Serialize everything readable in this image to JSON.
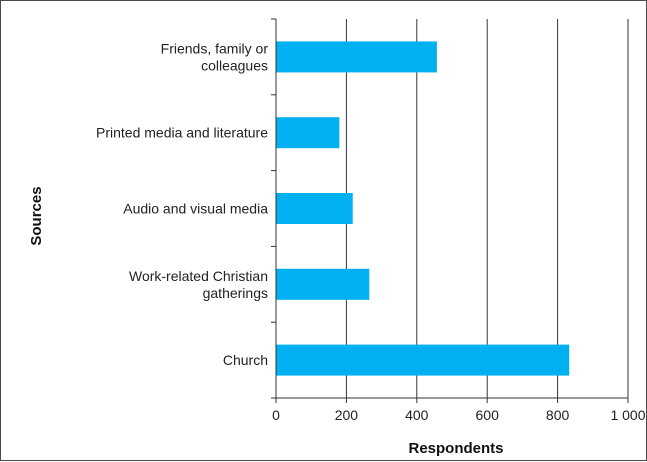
{
  "chart_data": {
    "type": "bar",
    "orientation": "horizontal",
    "xlabel": "Respondents",
    "ylabel": "Sources",
    "xlim": [
      0,
      1000
    ],
    "xticks": [
      0,
      200,
      400,
      600,
      800,
      1000
    ],
    "xtick_labels": [
      "0",
      "200",
      "400",
      "600",
      "800",
      "1 000"
    ],
    "grid": "vertical",
    "bar_color": "#00B0F0",
    "categories": [
      [
        "Friends, family or",
        "colleagues"
      ],
      [
        "Printed media and literature"
      ],
      [
        "Audio and visual media"
      ],
      [
        "Work-related Christian",
        "gatherings"
      ],
      [
        "Church"
      ]
    ],
    "values": [
      457,
      180,
      218,
      265,
      833
    ]
  }
}
